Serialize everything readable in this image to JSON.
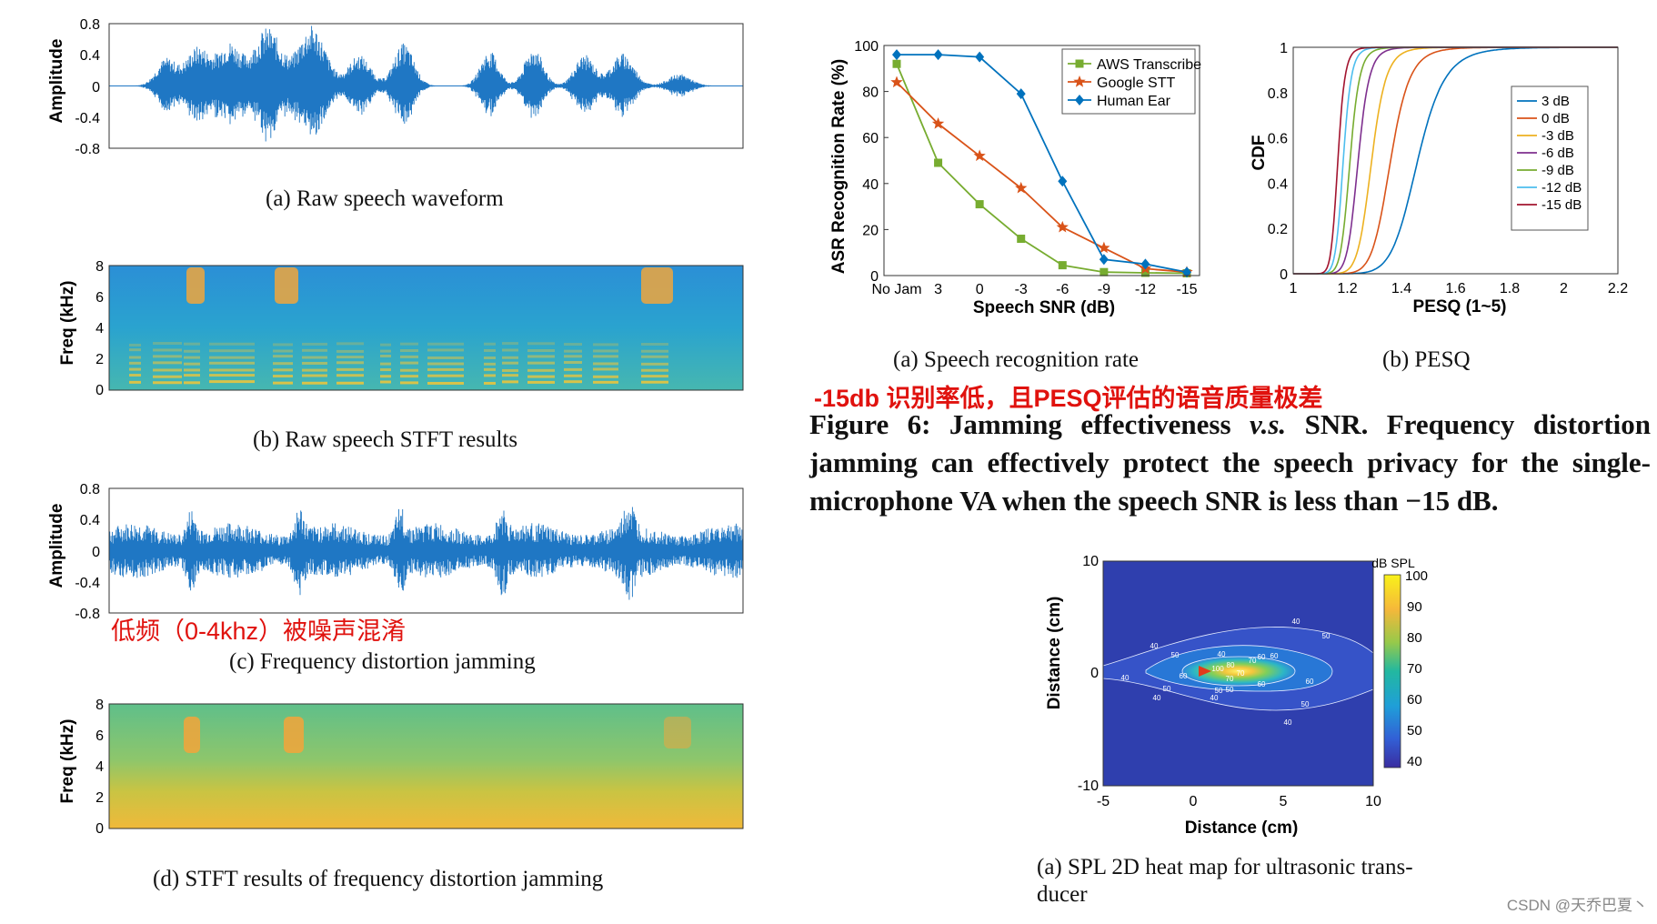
{
  "panels": {
    "a": {
      "caption": "(a)  Raw speech waveform",
      "ylabel": "Amplitude",
      "yticks": [
        "0.8",
        "0.4",
        "0",
        "-0.4",
        "-0.8"
      ],
      "yrange": [
        -0.8,
        0.8
      ],
      "bursts": [
        {
          "t": 0.09,
          "amp": 0.35,
          "w": 0.022
        },
        {
          "t": 0.14,
          "amp": 0.5,
          "w": 0.026
        },
        {
          "t": 0.19,
          "amp": 0.55,
          "w": 0.026
        },
        {
          "t": 0.25,
          "amp": 0.75,
          "w": 0.03
        },
        {
          "t": 0.32,
          "amp": 0.78,
          "w": 0.03
        },
        {
          "t": 0.395,
          "amp": 0.4,
          "w": 0.024
        },
        {
          "t": 0.465,
          "amp": 0.55,
          "w": 0.022
        },
        {
          "t": 0.6,
          "amp": 0.45,
          "w": 0.02
        },
        {
          "t": 0.67,
          "amp": 0.5,
          "w": 0.02
        },
        {
          "t": 0.75,
          "amp": 0.4,
          "w": 0.022
        },
        {
          "t": 0.81,
          "amp": 0.42,
          "w": 0.025
        },
        {
          "t": 0.9,
          "amp": 0.15,
          "w": 0.025
        }
      ]
    },
    "b": {
      "caption": "(b)  Raw speech STFT results",
      "ylabel": "Freq (kHz)",
      "yticks": [
        "8",
        "6",
        "4",
        "2",
        "0"
      ]
    },
    "c": {
      "caption": "(c)  Frequency distortion jamming",
      "ylabel": "Amplitude",
      "yticks": [
        "0.8",
        "0.4",
        "0",
        "-0.4",
        "-0.8"
      ],
      "note": "低频（0-4khz）被噪声混淆"
    },
    "d": {
      "caption": "(d)  STFT results of frequency distortion jamming",
      "ylabel": "Freq (kHz)",
      "yticks": [
        "8",
        "6",
        "4",
        "2",
        "0"
      ]
    }
  },
  "chart_data": [
    {
      "type": "line",
      "caption": "(a)  Speech recognition rate",
      "title": "",
      "xlabel": "Speech SNR (dB)",
      "ylabel": "ASR Recognition Rate (%)",
      "categories": [
        "No Jam",
        "3",
        "0",
        "-3",
        "-6",
        "-9",
        "-12",
        "-15"
      ],
      "ylim": [
        0,
        100
      ],
      "yticks": [
        "0",
        "20",
        "40",
        "60",
        "80",
        "100"
      ],
      "legend_position": "top-right",
      "series": [
        {
          "name": "AWS Transcribe",
          "color": "#77ac30",
          "marker": "square",
          "values": [
            92,
            49,
            31,
            16,
            4.5,
            1.5,
            1.2,
            1.0
          ]
        },
        {
          "name": "Google STT",
          "color": "#d95319",
          "marker": "star",
          "values": [
            84,
            66,
            52,
            38,
            21,
            12,
            3,
            1.5
          ]
        },
        {
          "name": "Human Ear",
          "color": "#0072bd",
          "marker": "diamond",
          "values": [
            96,
            96,
            95,
            79,
            41,
            7,
            5,
            1.5
          ]
        }
      ]
    },
    {
      "type": "line",
      "caption": "(b)  PESQ",
      "xlabel": "PESQ (1~5)",
      "ylabel": "CDF",
      "xlim": [
        1,
        2.2
      ],
      "ylim": [
        0,
        1
      ],
      "xticks": [
        "1",
        "1.2",
        "1.4",
        "1.6",
        "1.8",
        "2",
        "2.2"
      ],
      "yticks": [
        "0",
        "0.2",
        "0.4",
        "0.6",
        "0.8",
        "1"
      ],
      "legend_position": "right",
      "series": [
        {
          "name": "3 dB",
          "color": "#0072bd",
          "median": 1.46,
          "spread": 0.085
        },
        {
          "name": "0 dB",
          "color": "#d95319",
          "median": 1.36,
          "spread": 0.06
        },
        {
          "name": "-3 dB",
          "color": "#edb120",
          "median": 1.29,
          "spread": 0.045
        },
        {
          "name": "-6 dB",
          "color": "#7e2f8e",
          "median": 1.24,
          "spread": 0.035
        },
        {
          "name": "-9 dB",
          "color": "#77ac30",
          "median": 1.21,
          "spread": 0.03
        },
        {
          "name": "-12 dB",
          "color": "#4dbeee",
          "median": 1.185,
          "spread": 0.025
        },
        {
          "name": "-15 dB",
          "color": "#a2142f",
          "median": 1.165,
          "spread": 0.022
        }
      ]
    },
    {
      "type": "heatmap",
      "caption": "(a)  SPL 2D heat map for ultrasonic trans-\nducer",
      "caption_line1": "(a)  SPL 2D heat map for ultrasonic trans-",
      "caption_line2": "ducer",
      "xlabel": "Distance (cm)",
      "ylabel": "Distance (cm)",
      "xlim": [
        -5,
        10
      ],
      "ylim": [
        -10,
        10
      ],
      "xticks": [
        "-5",
        "0",
        "5",
        "10"
      ],
      "yticks": [
        "10",
        "0",
        "-10"
      ],
      "colorbar_label": "dB SPL",
      "colorbar_ticks": [
        "100",
        "90",
        "80",
        "70",
        "60",
        "50",
        "40"
      ],
      "contour_labels": [
        "40",
        "50",
        "40",
        "40",
        "50",
        "60",
        "40",
        "50",
        "40",
        "60",
        "70",
        "60",
        "50",
        "40",
        "70",
        "60",
        "50",
        "60",
        "50",
        "40",
        "100",
        "80",
        "70"
      ]
    }
  ],
  "annotation": "-15db 识别率低，且PESQ评估的语音质量极差",
  "figure6": {
    "label": "Figure 6: Jamming effectiveness ",
    "vs": "v.s.",
    "rest": " SNR. Frequency distortion jamming can effectively protect the speech privacy for the single-microphone VA when the speech SNR is less than −15 dB."
  },
  "watermark": "CSDN @天乔巴夏丶"
}
